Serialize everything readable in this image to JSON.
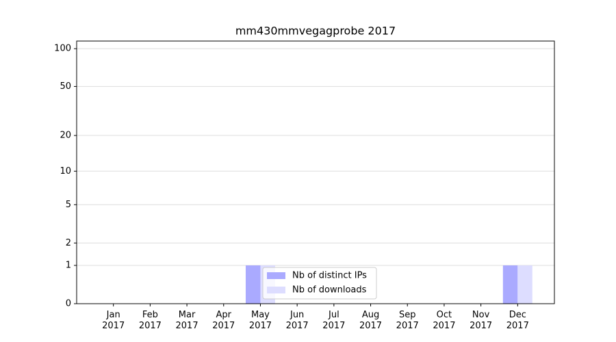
{
  "chart_data": {
    "type": "bar",
    "title": "mm430mmvegagprobe 2017",
    "categories": [
      "Jan\n2017",
      "Feb\n2017",
      "Mar\n2017",
      "Apr\n2017",
      "May\n2017",
      "Jun\n2017",
      "Jul\n2017",
      "Aug\n2017",
      "Sep\n2017",
      "Oct\n2017",
      "Nov\n2017",
      "Dec\n2017"
    ],
    "series": [
      {
        "name": "Nb of distinct IPs",
        "color": "#aaaaff",
        "values": [
          0,
          0,
          0,
          0,
          1,
          0,
          0,
          0,
          0,
          0,
          0,
          1
        ]
      },
      {
        "name": "Nb of downloads",
        "color": "#ddddff",
        "values": [
          0,
          0,
          0,
          0,
          1,
          0,
          0,
          0,
          0,
          0,
          0,
          1
        ]
      }
    ],
    "yscale": "log1p",
    "ylim": [
      0,
      115
    ],
    "yticks": [
      0,
      1,
      2,
      5,
      10,
      20,
      50,
      100
    ],
    "grid": true,
    "legend": "lower center"
  }
}
